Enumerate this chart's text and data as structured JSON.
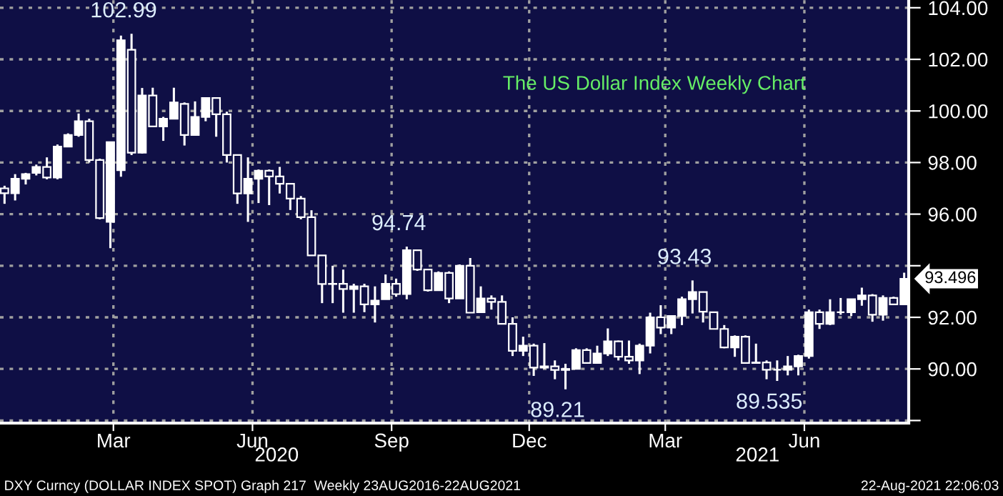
{
  "chart_data": {
    "type": "candlestick",
    "title": "The US Dollar Index Weekly Chart",
    "x": [
      "2020-01-03",
      "2020-01-10",
      "2020-01-17",
      "2020-01-24",
      "2020-01-31",
      "2020-02-07",
      "2020-02-14",
      "2020-02-21",
      "2020-02-28",
      "2020-03-06",
      "2020-03-13",
      "2020-03-20",
      "2020-03-27",
      "2020-04-03",
      "2020-04-10",
      "2020-04-17",
      "2020-04-24",
      "2020-05-01",
      "2020-05-08",
      "2020-05-15",
      "2020-05-22",
      "2020-05-29",
      "2020-06-05",
      "2020-06-12",
      "2020-06-19",
      "2020-06-26",
      "2020-07-03",
      "2020-07-10",
      "2020-07-17",
      "2020-07-24",
      "2020-07-31",
      "2020-08-07",
      "2020-08-14",
      "2020-08-21",
      "2020-08-28",
      "2020-09-04",
      "2020-09-11",
      "2020-09-18",
      "2020-09-25",
      "2020-10-02",
      "2020-10-09",
      "2020-10-16",
      "2020-10-23",
      "2020-10-30",
      "2020-11-06",
      "2020-11-13",
      "2020-11-20",
      "2020-11-27",
      "2020-12-04",
      "2020-12-11",
      "2020-12-18",
      "2020-12-25",
      "2021-01-01",
      "2021-01-08",
      "2021-01-15",
      "2021-01-22",
      "2021-01-29",
      "2021-02-05",
      "2021-02-12",
      "2021-02-19",
      "2021-02-26",
      "2021-03-05",
      "2021-03-12",
      "2021-03-19",
      "2021-03-26",
      "2021-04-02",
      "2021-04-09",
      "2021-04-16",
      "2021-04-23",
      "2021-04-30",
      "2021-05-07",
      "2021-05-14",
      "2021-05-21",
      "2021-05-28",
      "2021-06-04",
      "2021-06-11",
      "2021-06-18",
      "2021-06-25",
      "2021-07-02",
      "2021-07-09",
      "2021-07-16",
      "2021-07-23",
      "2021-07-30",
      "2021-08-06",
      "2021-08-13",
      "2021-08-20"
    ],
    "series": [
      {
        "color": "#ffffff",
        "ohlc": [
          [
            97.0,
            97.1,
            96.4,
            96.81
          ],
          [
            96.81,
            97.55,
            96.53,
            97.37
          ],
          [
            97.37,
            97.6,
            97.15,
            97.55
          ],
          [
            97.6,
            97.92,
            97.5,
            97.83
          ],
          [
            97.83,
            98.2,
            97.35,
            97.42
          ],
          [
            97.42,
            98.7,
            97.35,
            98.62
          ],
          [
            98.62,
            99.13,
            98.6,
            99.07
          ],
          [
            99.07,
            99.9,
            99.0,
            99.6
          ],
          [
            99.6,
            99.7,
            98.0,
            98.1
          ],
          [
            98.1,
            98.15,
            95.8,
            95.85
          ],
          [
            95.7,
            98.8,
            94.68,
            98.79
          ],
          [
            97.7,
            102.92,
            97.45,
            102.74
          ],
          [
            102.37,
            102.99,
            98.29,
            98.38
          ],
          [
            98.38,
            100.89,
            98.35,
            100.6
          ],
          [
            100.6,
            100.9,
            99.4,
            99.4
          ],
          [
            99.4,
            99.77,
            98.84,
            99.7
          ],
          [
            99.7,
            100.9,
            99.7,
            100.33
          ],
          [
            100.27,
            100.33,
            98.66,
            99.07
          ],
          [
            99.07,
            100.37,
            99.07,
            99.77
          ],
          [
            99.77,
            100.5,
            99.6,
            100.5
          ],
          [
            100.5,
            100.5,
            99.0,
            99.87
          ],
          [
            99.87,
            99.97,
            98.0,
            98.29
          ],
          [
            98.29,
            98.29,
            96.4,
            96.8
          ],
          [
            96.8,
            98.2,
            95.7,
            97.37
          ],
          [
            97.37,
            97.73,
            96.43,
            97.68
          ],
          [
            97.68,
            97.73,
            96.35,
            97.46
          ],
          [
            97.46,
            97.83,
            96.8,
            97.18
          ],
          [
            97.18,
            97.18,
            96.16,
            96.6
          ],
          [
            96.6,
            96.7,
            95.8,
            95.88
          ],
          [
            95.88,
            96.15,
            94.4,
            94.4
          ],
          [
            94.4,
            94.4,
            92.55,
            93.29
          ],
          [
            93.29,
            94.0,
            92.55,
            93.3
          ],
          [
            93.3,
            93.85,
            92.18,
            93.1
          ],
          [
            93.1,
            93.3,
            92.18,
            93.2
          ],
          [
            93.2,
            93.3,
            92.2,
            92.5
          ],
          [
            92.5,
            93.2,
            91.8,
            92.65
          ],
          [
            92.7,
            93.66,
            92.7,
            93.3
          ],
          [
            93.3,
            93.5,
            92.8,
            92.9
          ],
          [
            92.9,
            94.74,
            92.7,
            94.6
          ],
          [
            94.6,
            94.6,
            93.8,
            93.85
          ],
          [
            93.85,
            93.85,
            93.0,
            93.05
          ],
          [
            93.05,
            93.78,
            93.05,
            93.72
          ],
          [
            93.72,
            93.78,
            92.55,
            92.73
          ],
          [
            92.73,
            94.05,
            92.73,
            94.0
          ],
          [
            94.0,
            94.3,
            92.18,
            92.18
          ],
          [
            92.2,
            93.2,
            92.18,
            92.73
          ],
          [
            92.73,
            92.85,
            92.3,
            92.6
          ],
          [
            92.6,
            92.85,
            91.75,
            91.75
          ],
          [
            91.75,
            92.0,
            90.5,
            90.7
          ],
          [
            90.7,
            91.25,
            90.5,
            90.9
          ],
          [
            90.9,
            90.98,
            89.73,
            90.05
          ],
          [
            90.05,
            91.0,
            90.0,
            90.1
          ],
          [
            90.1,
            90.33,
            89.6,
            89.96
          ],
          [
            89.96,
            90.2,
            89.21,
            90.0
          ],
          [
            90.0,
            90.8,
            90.0,
            90.73
          ],
          [
            90.73,
            90.8,
            90.2,
            90.23
          ],
          [
            90.23,
            90.9,
            90.2,
            90.6
          ],
          [
            90.6,
            91.57,
            90.5,
            91.07
          ],
          [
            91.07,
            91.1,
            90.33,
            90.47
          ],
          [
            90.47,
            91.1,
            90.2,
            90.33
          ],
          [
            90.33,
            90.98,
            89.8,
            90.9
          ],
          [
            90.9,
            92.18,
            90.6,
            92.0
          ],
          [
            92.0,
            92.47,
            91.35,
            91.6
          ],
          [
            91.6,
            92.05,
            91.35,
            92.05
          ],
          [
            92.05,
            92.8,
            91.7,
            92.7
          ],
          [
            92.7,
            93.43,
            92.15,
            92.98
          ],
          [
            92.98,
            93.0,
            91.8,
            92.22
          ],
          [
            92.2,
            92.2,
            91.55,
            91.55
          ],
          [
            91.55,
            91.7,
            90.8,
            90.83
          ],
          [
            90.83,
            91.3,
            90.47,
            91.25
          ],
          [
            91.25,
            91.3,
            90.2,
            90.23
          ],
          [
            90.23,
            90.98,
            90.2,
            90.25
          ],
          [
            90.25,
            90.33,
            89.6,
            89.97
          ],
          [
            89.97,
            90.33,
            89.535,
            89.97
          ],
          [
            89.97,
            90.5,
            89.75,
            90.1
          ],
          [
            90.1,
            90.55,
            89.75,
            90.5
          ],
          [
            90.5,
            92.3,
            90.4,
            92.2
          ],
          [
            92.2,
            92.3,
            91.55,
            91.75
          ],
          [
            91.75,
            92.7,
            91.7,
            92.2
          ],
          [
            92.2,
            92.75,
            92.1,
            92.2
          ],
          [
            92.2,
            92.7,
            92.05,
            92.7
          ],
          [
            92.7,
            93.15,
            92.45,
            92.85
          ],
          [
            92.85,
            92.9,
            91.83,
            92.1
          ],
          [
            92.1,
            92.85,
            91.87,
            92.75
          ],
          [
            92.75,
            92.8,
            92.5,
            92.5
          ],
          [
            92.5,
            93.73,
            92.5,
            93.496
          ]
        ]
      }
    ],
    "xlim": [
      "2019-12-31",
      "2021-08-23"
    ],
    "xticks": [
      {
        "value": "2020-03-15",
        "label": "Mar"
      },
      {
        "value": "2020-06-15",
        "label": "Jun"
      },
      {
        "value": "2020-09-15",
        "label": "Sep"
      },
      {
        "value": "2020-12-15",
        "label": "Dec"
      },
      {
        "value": "2021-03-15",
        "label": "Mar"
      },
      {
        "value": "2021-06-15",
        "label": "Jun"
      }
    ],
    "x2lim": [
      "2019-12-31",
      "2021-08-23"
    ],
    "x2ticks": [
      {
        "value": "2020-07-01",
        "label": "2020"
      },
      {
        "value": "2021-05-15",
        "label": "2021"
      }
    ],
    "ylim": [
      87.9,
      104.3
    ],
    "yticks": [
      {
        "value": 88,
        "label": null
      },
      {
        "value": 90,
        "label": "90.00"
      },
      {
        "value": 92,
        "label": "92.00"
      },
      {
        "value": 94,
        "label": null
      },
      {
        "value": 96,
        "label": "96.00"
      },
      {
        "value": 98,
        "label": "98.00"
      },
      {
        "value": 100,
        "label": "100.00"
      },
      {
        "value": 102,
        "label": "102.00"
      },
      {
        "value": 104,
        "label": "104.00"
      }
    ],
    "grid": true,
    "annotations": [
      {
        "text": "102.99",
        "x": "2020-03-27",
        "y": 102.99
      },
      {
        "text": "94.74",
        "x": "2020-09-25",
        "y": 94.74
      },
      {
        "text": "89.21",
        "x": "2021-01-08",
        "y": 89.21
      },
      {
        "text": "93.43",
        "x": "2021-04-02",
        "y": 93.43
      },
      {
        "text": "89.535",
        "x": "2021-05-28",
        "y": 89.535
      },
      {
        "text": "93.496",
        "x": "2021-08-20",
        "y": 93.496
      },
      "DXY Curncy (DOLLAR INDEX SPOT) Graph 217  Weekly 23AUG2016-22AUG2021",
      "22-Aug-2021 22:06:03"
    ]
  }
}
